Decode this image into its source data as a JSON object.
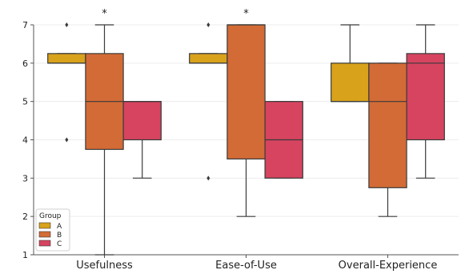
{
  "chart_data": {
    "type": "box",
    "categories": [
      "Usefulness",
      "Ease-of-Use",
      "Overall-Experience"
    ],
    "ylim": [
      1,
      7
    ],
    "yticks": [
      1,
      2,
      3,
      4,
      5,
      6,
      7
    ],
    "grid": true,
    "legend": {
      "title": "Group",
      "placement": "bottom-left",
      "entries": [
        "A",
        "B",
        "C"
      ]
    },
    "significance": [
      {
        "category": "Usefulness",
        "label": "*"
      },
      {
        "category": "Ease-of-Use",
        "label": "*"
      }
    ],
    "series": [
      {
        "name": "A",
        "color": "#D9A21B",
        "boxes": [
          {
            "min": 6,
            "q1": 6,
            "median": 6,
            "q3": 6.25,
            "max": 6.25,
            "outliers": [
              7,
              4
            ]
          },
          {
            "min": 6,
            "q1": 6,
            "median": 6,
            "q3": 6.25,
            "max": 6.25,
            "outliers": [
              7,
              3
            ]
          },
          {
            "min": 5,
            "q1": 5,
            "median": 5,
            "q3": 6,
            "max": 7,
            "outliers": []
          }
        ]
      },
      {
        "name": "B",
        "color": "#D36B36",
        "boxes": [
          {
            "min": 1,
            "q1": 3.75,
            "median": 5,
            "q3": 6.25,
            "max": 7,
            "outliers": []
          },
          {
            "min": 2,
            "q1": 3.5,
            "median": 7,
            "q3": 7,
            "max": 7,
            "outliers": []
          },
          {
            "min": 2,
            "q1": 2.75,
            "median": 5,
            "q3": 6,
            "max": 6,
            "outliers": []
          }
        ]
      },
      {
        "name": "C",
        "color": "#D64460",
        "boxes": [
          {
            "min": 3,
            "q1": 4,
            "median": 5,
            "q3": 5,
            "max": 5,
            "outliers": []
          },
          {
            "min": 3,
            "q1": 3,
            "median": 4,
            "q3": 5,
            "max": 5,
            "outliers": []
          },
          {
            "min": 3,
            "q1": 4,
            "median": 6,
            "q3": 6.25,
            "max": 7,
            "outliers": []
          }
        ]
      }
    ]
  }
}
